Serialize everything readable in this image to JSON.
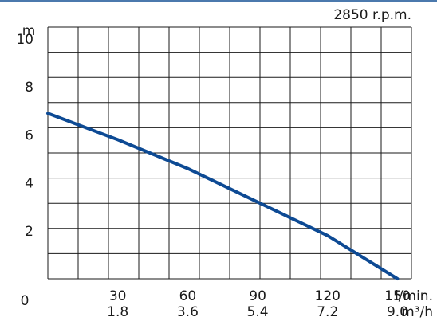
{
  "chart_data": {
    "type": "line",
    "speed_label": "2850 r.p.m.",
    "y_unit": "m",
    "x_unit_primary": "l/min.",
    "x_unit_secondary": "m³/h",
    "x_zero_label": "0",
    "xlim": [
      0,
      156
    ],
    "ylim": [
      0,
      10.5
    ],
    "grid": true,
    "x_ticks_primary": [
      "30",
      "60",
      "90",
      "120",
      "150"
    ],
    "x_ticks_secondary": [
      "1.8",
      "3.6",
      "5.4",
      "7.2",
      "9.0"
    ],
    "x_tick_values": [
      30,
      60,
      90,
      120,
      150
    ],
    "y_ticks": [
      "2",
      "4",
      "6",
      "8",
      "10"
    ],
    "y_tick_values": [
      2,
      4,
      6,
      8,
      10
    ],
    "series": [
      {
        "x": [
          0,
          30,
          60,
          90,
          120,
          150
        ],
        "y": [
          6.9,
          5.8,
          4.6,
          3.2,
          1.8,
          0.0
        ]
      }
    ],
    "colors": {
      "curve": "#0d4a94",
      "grid": "#1a1a1a",
      "top_rule": "#4b79ad"
    }
  }
}
